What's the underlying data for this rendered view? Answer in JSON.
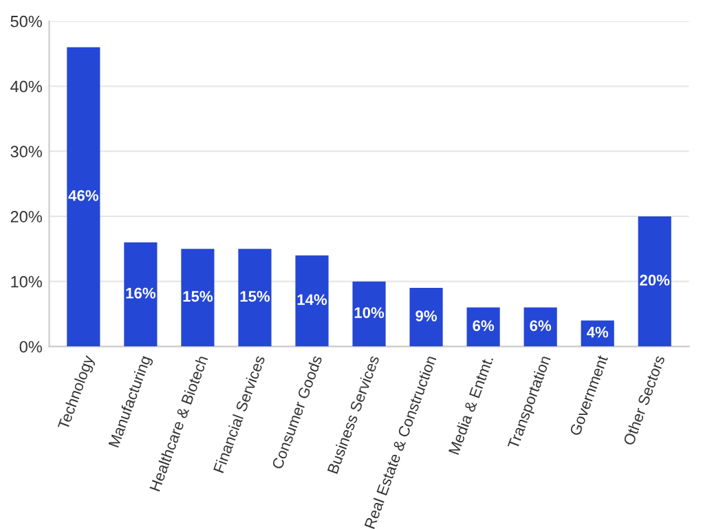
{
  "chart_data": {
    "type": "bar",
    "categories": [
      "Technology",
      "Manufacturing",
      "Healthcare & Biotech",
      "Financial Services",
      "Consumer Goods",
      "Business Services",
      "Real Estate & Construction",
      "Media & Entmt.",
      "Transportation",
      "Government",
      "Other Sectors"
    ],
    "values": [
      46,
      16,
      15,
      15,
      14,
      10,
      9,
      6,
      6,
      4,
      20
    ],
    "value_labels": [
      "46%",
      "16%",
      "15%",
      "15%",
      "14%",
      "10%",
      "9%",
      "6%",
      "6%",
      "4%",
      "20%"
    ],
    "color": "#2447d6",
    "ylim": [
      0,
      50
    ],
    "yticks": [
      {
        "value": 0,
        "label": "0%"
      },
      {
        "value": 10,
        "label": "10%"
      },
      {
        "value": 20,
        "label": "20%"
      },
      {
        "value": 30,
        "label": "30%"
      },
      {
        "value": 40,
        "label": "40%"
      },
      {
        "value": 50,
        "label": "50%"
      }
    ],
    "grid": "y"
  }
}
